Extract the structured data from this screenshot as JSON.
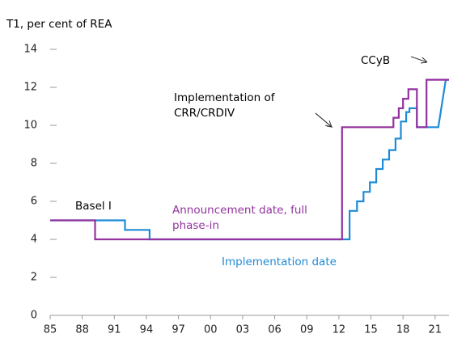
{
  "chart_data": {
    "type": "line",
    "y_axis_label": "T1, per cent of REA",
    "xlim": [
      1985,
      2022.3
    ],
    "ylim": [
      0,
      14
    ],
    "xticks": [
      {
        "value": 1985,
        "label": "85"
      },
      {
        "value": 1988,
        "label": "88"
      },
      {
        "value": 1991,
        "label": "91"
      },
      {
        "value": 1994,
        "label": "94"
      },
      {
        "value": 1997,
        "label": "97"
      },
      {
        "value": 2000,
        "label": "00"
      },
      {
        "value": 2003,
        "label": "03"
      },
      {
        "value": 2006,
        "label": "06"
      },
      {
        "value": 2009,
        "label": "09"
      },
      {
        "value": 2012,
        "label": "12"
      },
      {
        "value": 2015,
        "label": "15"
      },
      {
        "value": 2018,
        "label": "18"
      },
      {
        "value": 2021,
        "label": "21"
      }
    ],
    "yticks": [
      0,
      2,
      4,
      6,
      8,
      10,
      12,
      14
    ],
    "series": [
      {
        "name": "Announcement date, full phase-in",
        "color": "#93329e",
        "x": [
          1985,
          1989.2,
          1989.2,
          2012.3,
          2012.3,
          2017.1,
          2017.1,
          2017.6,
          2017.6,
          2018.0,
          2018.0,
          2018.5,
          2018.5,
          2019.3,
          2019.3,
          2020.2,
          2020.2,
          2022.3
        ],
        "y": [
          5,
          5,
          4,
          4,
          9.9,
          9.9,
          10.4,
          10.4,
          10.9,
          10.9,
          11.4,
          11.4,
          11.9,
          11.9,
          9.9,
          9.9,
          12.4,
          12.4
        ]
      },
      {
        "name": "Implementation date",
        "color": "#1f8bd6",
        "x": [
          1985,
          1992.0,
          1992.0,
          1994.3,
          1994.3,
          2013.0,
          2013.0,
          2013.7,
          2013.7,
          2014.3,
          2014.3,
          2014.9,
          2014.9,
          2015.5,
          2015.5,
          2016.1,
          2016.1,
          2016.7,
          2016.7,
          2017.3,
          2017.3,
          2017.8,
          2017.8,
          2018.3,
          2018.3,
          2018.6,
          2018.6,
          2019.3,
          2019.3,
          2021.3,
          2022.0,
          2022.3
        ],
        "y": [
          5,
          5,
          4.5,
          4.5,
          4,
          4,
          5.5,
          5.5,
          6.0,
          6.0,
          6.5,
          6.5,
          7.0,
          7.0,
          7.7,
          7.7,
          8.2,
          8.2,
          8.7,
          8.7,
          9.3,
          9.3,
          10.2,
          10.2,
          10.7,
          10.7,
          10.9,
          10.9,
          9.9,
          9.9,
          12.4,
          12.4
        ]
      }
    ],
    "annotations": [
      "Basel I",
      "Implementation of CRR/CRDIV",
      "CCyB"
    ]
  }
}
